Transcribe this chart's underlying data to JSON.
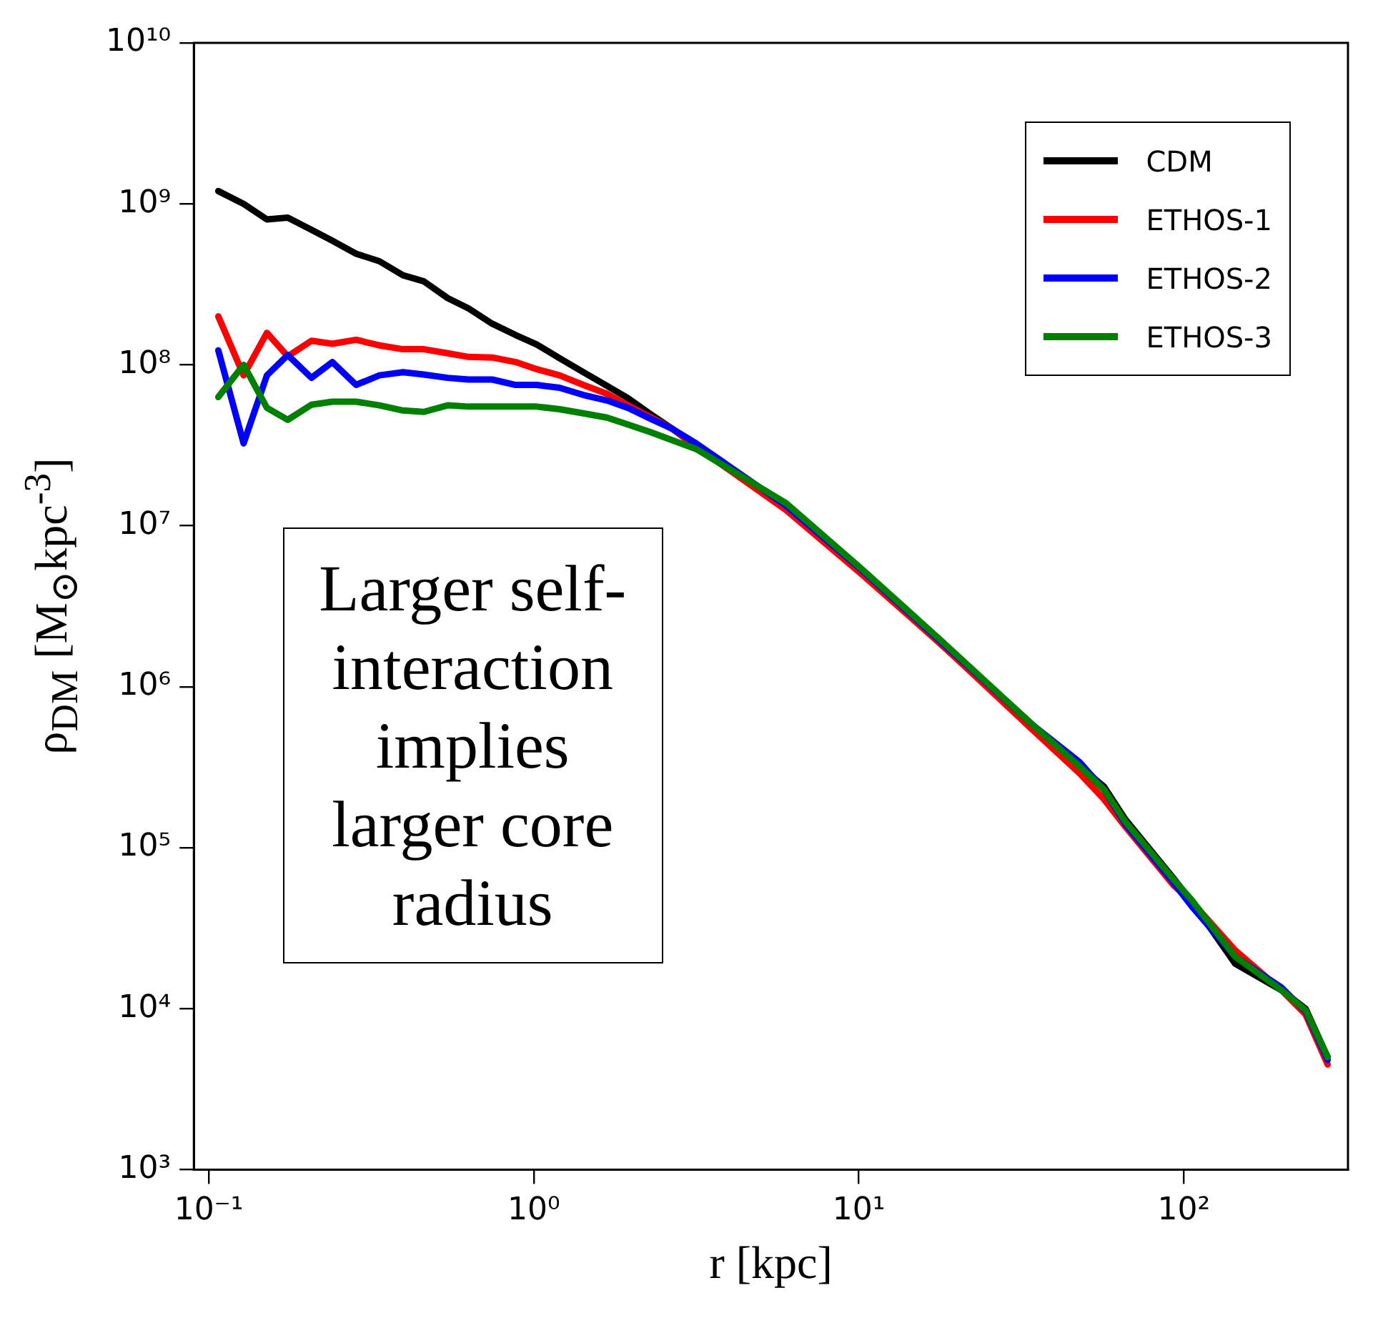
{
  "chart_data": {
    "type": "line",
    "xlabel": "r [kpc]",
    "ylabel": "ρ$_{DM}$ [M$_{⊙}$kpc$^{-3}$]",
    "log": "xy",
    "grid": false,
    "legend": "top right",
    "xlim": [
      0.09,
      320
    ],
    "ylim": [
      1000,
      10000000000
    ],
    "xticks": [
      {
        "value": 0.1,
        "label": "10⁻¹"
      },
      {
        "value": 1,
        "label": "10⁰"
      },
      {
        "value": 10,
        "label": "10¹"
      },
      {
        "value": 100,
        "label": "10²"
      }
    ],
    "yticks": [
      {
        "value": 1000,
        "label": "10³"
      },
      {
        "value": 10000,
        "label": "10⁴"
      },
      {
        "value": 100000,
        "label": "10⁵"
      },
      {
        "value": 1000000,
        "label": "10⁶"
      },
      {
        "value": 10000000,
        "label": "10⁷"
      },
      {
        "value": 100000000,
        "label": "10⁸"
      },
      {
        "value": 1000000000,
        "label": "10⁹"
      },
      {
        "value": 10000000000,
        "label": "10¹⁰"
      }
    ],
    "annotations": [
      "Larger self-interaction implies larger core radius"
    ],
    "x": [
      0.107,
      0.128,
      0.151,
      0.175,
      0.207,
      0.24,
      0.284,
      0.335,
      0.396,
      0.459,
      0.543,
      0.63,
      0.745,
      0.88,
      1.02,
      1.2,
      1.42,
      1.68,
      1.95,
      2.3,
      2.67,
      3.16,
      5.98,
      10.2,
      18.1,
      34.6,
      47.8,
      56.8,
      66.1,
      93.3,
      106,
      144,
      200,
      237,
      277
    ],
    "series": [
      {
        "name": "CDM",
        "color": "#000000",
        "values": [
          1200000000.0,
          1000000000.0,
          800000000.0,
          820000000.0,
          690000000.0,
          590000000.0,
          490000000.0,
          440000000.0,
          360000000.0,
          330000000.0,
          260000000.0,
          224000000.0,
          180000000.0,
          153000000.0,
          134000000.0,
          110000000.0,
          90000000.0,
          74000000.0,
          62000000.0,
          49000000.0,
          40000000.0,
          31000000.0,
          13000000.0,
          5200000.0,
          1800000.0,
          550000.0,
          320000.0,
          240000.0,
          150000.0,
          64000.0,
          46000.0,
          19000.0,
          13000.0,
          10000.0,
          5000.0
        ]
      },
      {
        "name": "ETHOS-1",
        "color": "#ff0000",
        "values": [
          200000000.0,
          86000000.0,
          158000000.0,
          113000000.0,
          141000000.0,
          135000000.0,
          143000000.0,
          132000000.0,
          125000000.0,
          125000000.0,
          118000000.0,
          112000000.0,
          111000000.0,
          104000000.0,
          94000000.0,
          86000000.0,
          75000000.0,
          66000000.0,
          56000000.0,
          47000000.0,
          40000000.0,
          31000000.0,
          12500000.0,
          5000000.0,
          1800000.0,
          530000.0,
          290000.0,
          200000.0,
          135000.0,
          58000.0,
          46000.0,
          23000.0,
          13000.0,
          9200.0,
          4500.0
        ]
      },
      {
        "name": "ETHOS-2",
        "color": "#0000ff",
        "values": [
          123000000.0,
          32500000.0,
          86000000.0,
          115000000.0,
          83000000.0,
          104000000.0,
          75000000.0,
          86000000.0,
          90000000.0,
          87000000.0,
          83000000.0,
          81000000.0,
          81000000.0,
          75000000.0,
          75000000.0,
          72000000.0,
          65000000.0,
          60000000.0,
          54000000.0,
          46000000.0,
          40000000.0,
          32500000.0,
          13300000.0,
          5300000.0,
          1860000.0,
          570000.0,
          340000.0,
          230000.0,
          140000.0,
          60000.0,
          43000.0,
          21000.0,
          13500.0,
          9600.0,
          4800.0
        ]
      },
      {
        "name": "ETHOS-3",
        "color": "#008000",
        "values": [
          63000000.0,
          100000000.0,
          54000000.0,
          45500000.0,
          56500000.0,
          59000000.0,
          59000000.0,
          56000000.0,
          52000000.0,
          51000000.0,
          56000000.0,
          55000000.0,
          55000000.0,
          55000000.0,
          55000000.0,
          53000000.0,
          50000000.0,
          47000000.0,
          42500000.0,
          38000000.0,
          34000000.0,
          30000000.0,
          13800000.0,
          5400000.0,
          1900000.0,
          570000.0,
          320000.0,
          230000.0,
          145000.0,
          63000.0,
          47000.0,
          21000.0,
          13000.0,
          9800.0,
          5000.0
        ]
      }
    ]
  }
}
